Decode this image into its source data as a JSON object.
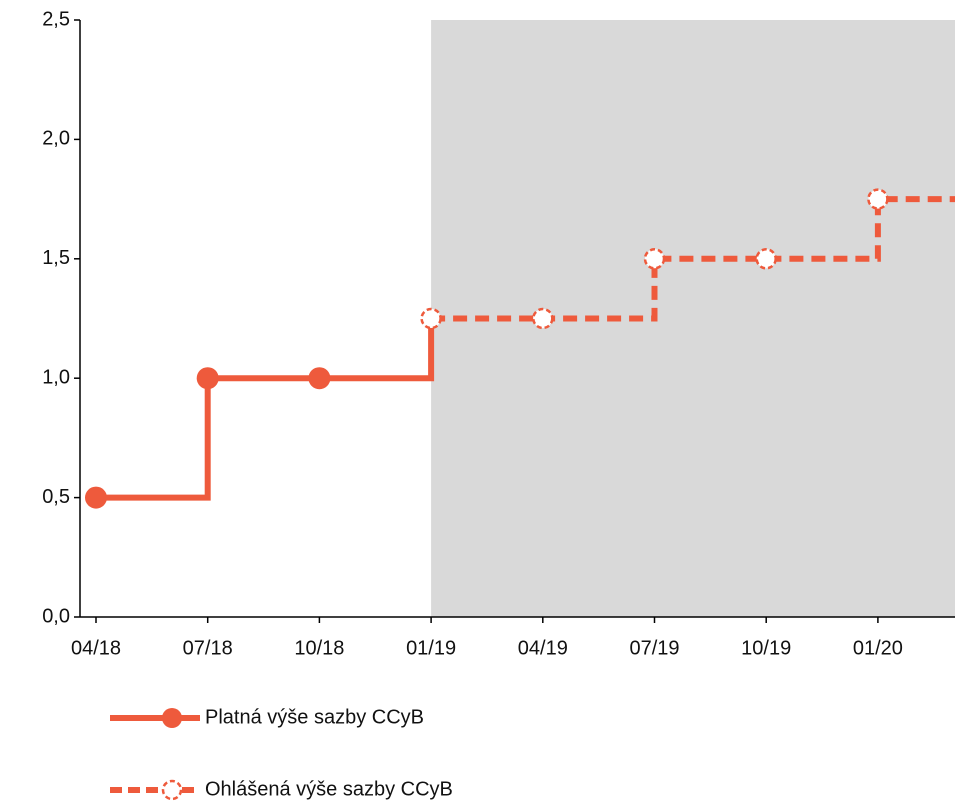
{
  "chart_data": {
    "type": "step-line",
    "categories": [
      "04/18",
      "07/18",
      "10/18",
      "01/19",
      "04/19",
      "07/19",
      "10/19",
      "01/20"
    ],
    "series": [
      {
        "name": "Platná výše sazby CCyB",
        "color": "#ee5a3c",
        "style": "solid",
        "values": [
          0.5,
          1.0,
          1.0,
          null,
          null,
          null,
          null,
          null
        ]
      },
      {
        "name": "Ohlášená výše sazby CCyB",
        "color": "#ee5a3c",
        "style": "dashed",
        "values": [
          null,
          null,
          null,
          1.25,
          1.25,
          1.5,
          1.5,
          1.75
        ]
      }
    ],
    "ylim": [
      0,
      2.5
    ],
    "yticks": [
      {
        "value": 0,
        "label": "0,0"
      },
      {
        "value": 0.5,
        "label": "0,5"
      },
      {
        "value": 1,
        "label": "1,0"
      },
      {
        "value": 1.5,
        "label": "1,5"
      },
      {
        "value": 2,
        "label": "2,0"
      },
      {
        "value": 2.5,
        "label": "2,5"
      }
    ],
    "shaded_region": {
      "from": "01/19",
      "color": "#d9d9d9"
    },
    "grid": false,
    "legend": "bottom"
  }
}
